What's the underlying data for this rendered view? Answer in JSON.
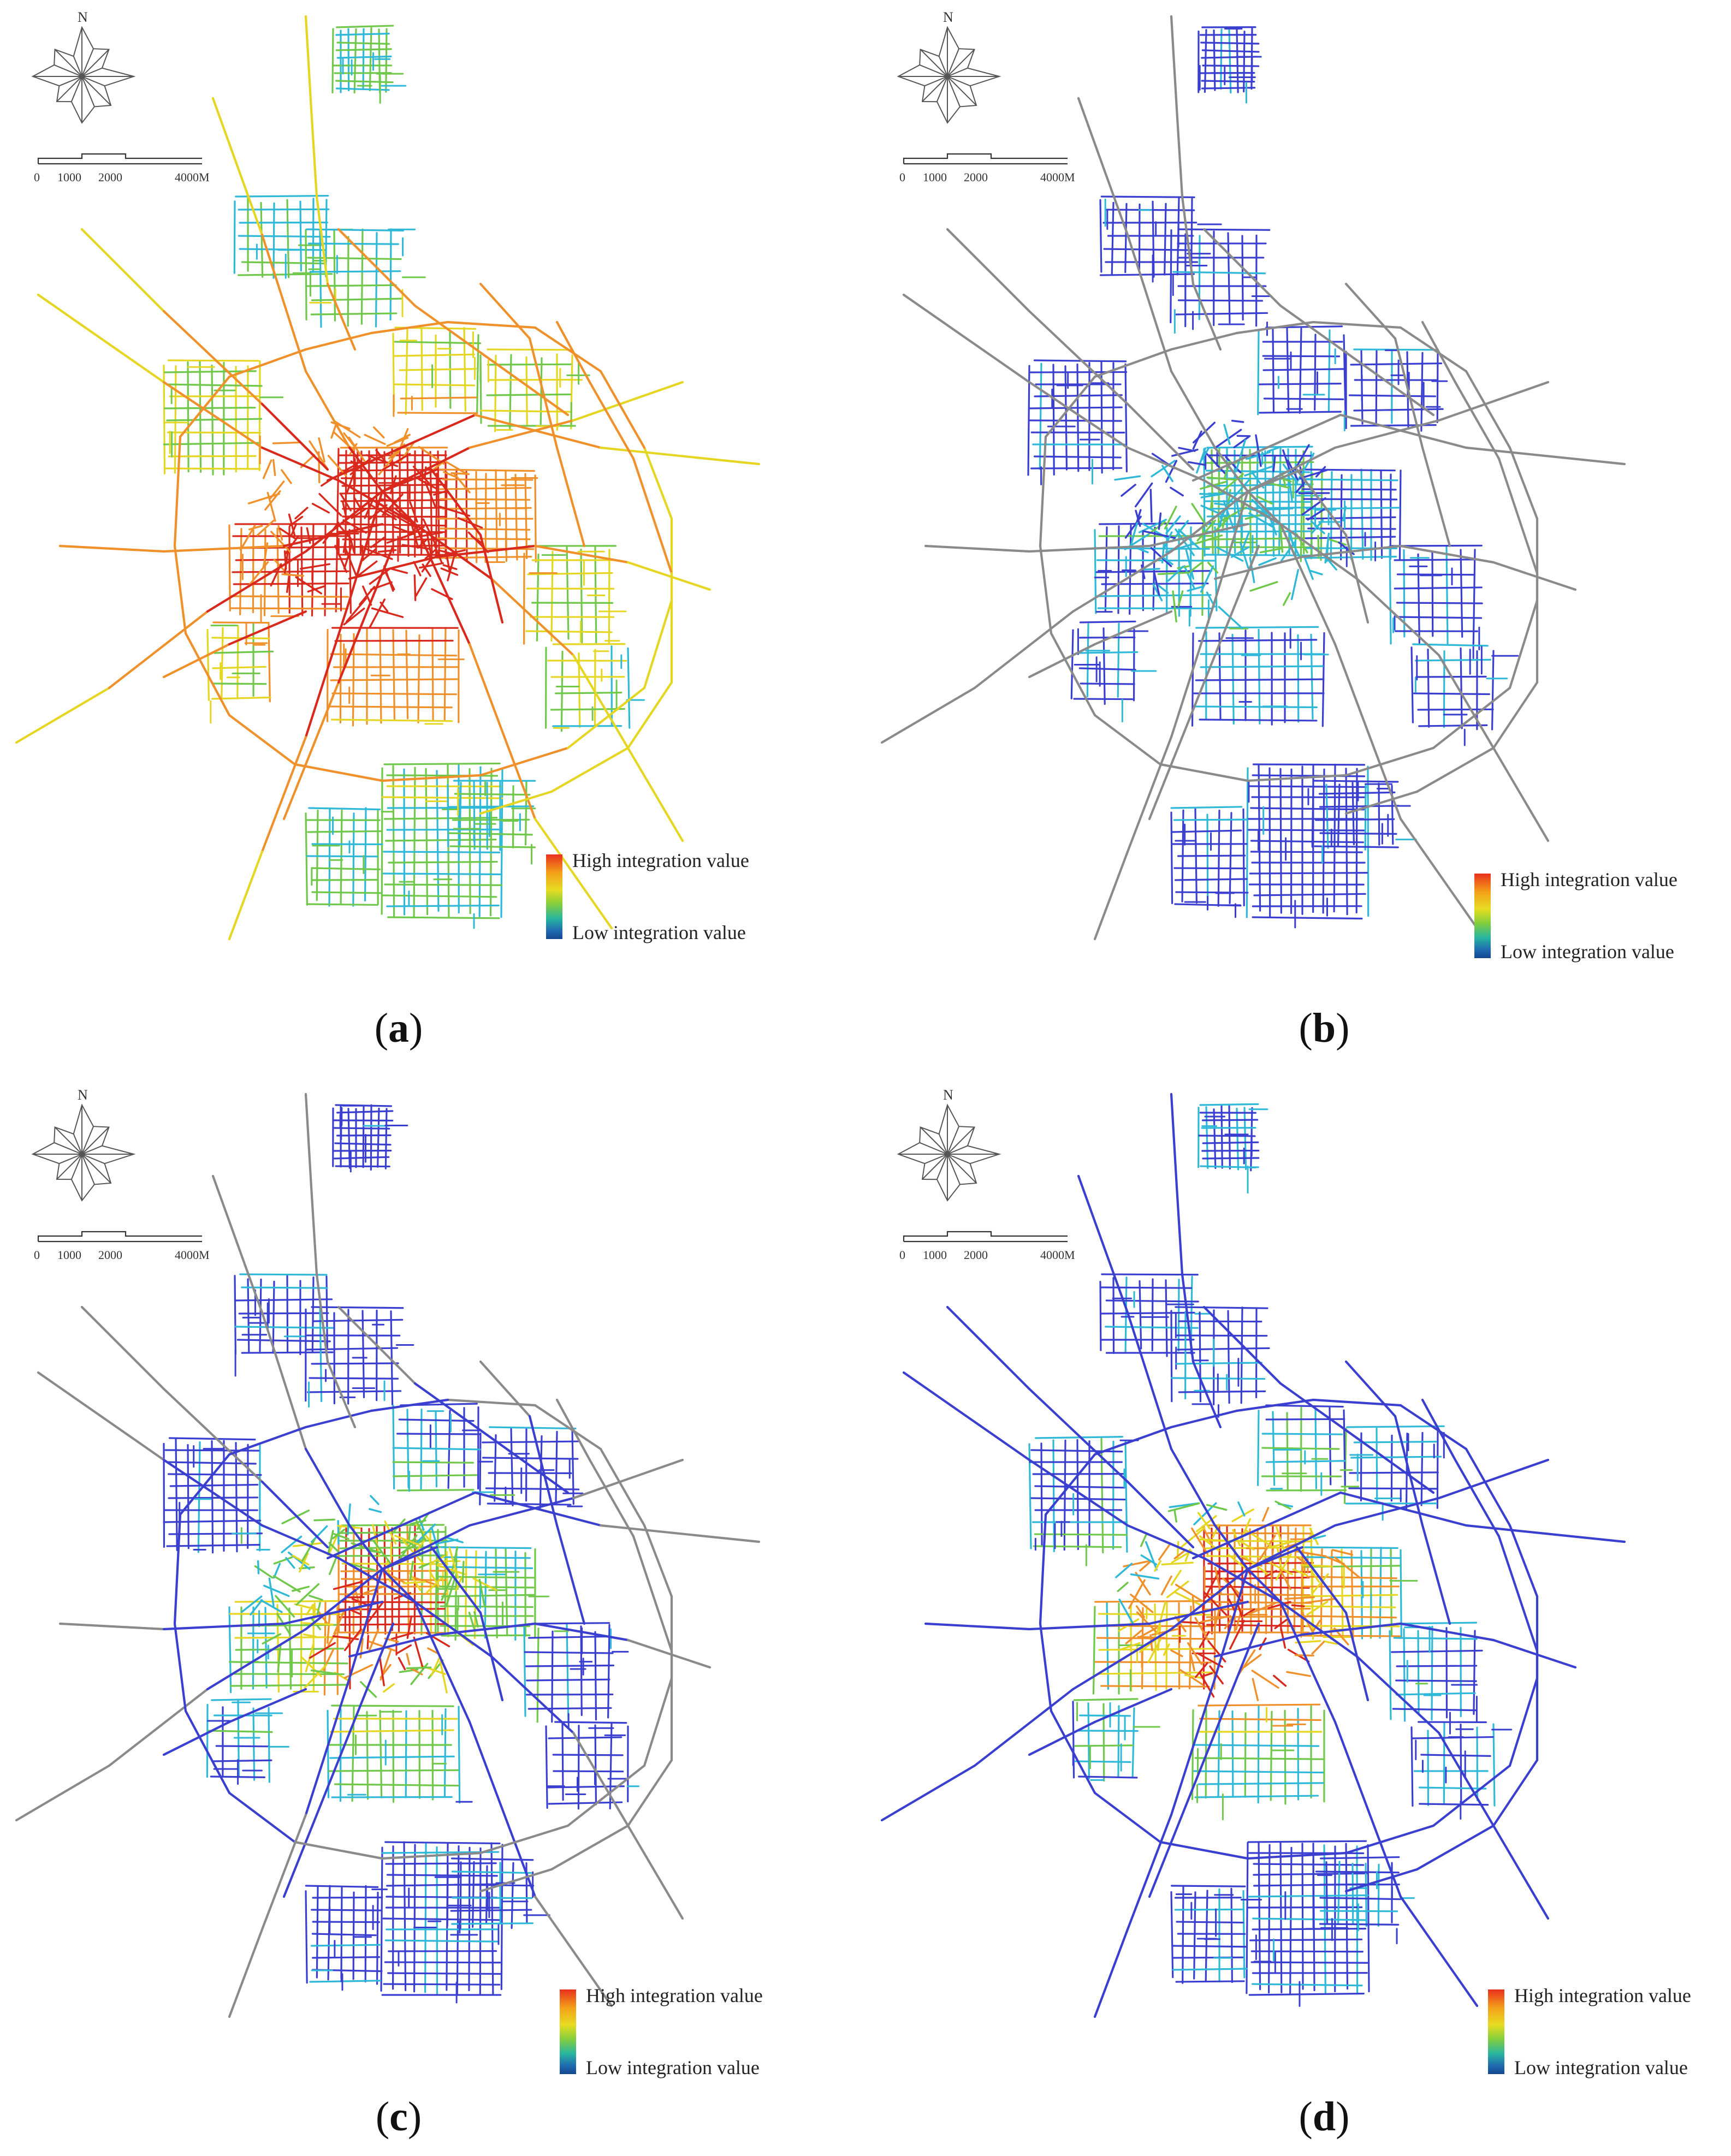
{
  "figure": {
    "panels": [
      {
        "id": "a",
        "label": "a",
        "color_scheme": "global"
      },
      {
        "id": "b",
        "label": "b",
        "color_scheme": "local-radius-small"
      },
      {
        "id": "c",
        "label": "c",
        "color_scheme": "local-radius-medium"
      },
      {
        "id": "d",
        "label": "d",
        "color_scheme": "local-radius-large"
      }
    ],
    "north_label": "N",
    "scale_bar": {
      "ticks": [
        "0",
        "1000",
        "2000",
        "4000M"
      ]
    },
    "legend": {
      "high": "High integration value",
      "low": "Low integration value",
      "colors": [
        "#e8301c",
        "#f4a21a",
        "#e7dc22",
        "#86cf3a",
        "#27b5a0",
        "#1f6ab0",
        "#14478f"
      ]
    },
    "colors": {
      "grey_road": "#8a8a8a",
      "low_blue": "#3a3fd0",
      "cyan": "#2fb8d8",
      "green": "#6fc84a",
      "yellow": "#e5d623",
      "orange": "#f0902a",
      "red": "#d9281c"
    }
  }
}
